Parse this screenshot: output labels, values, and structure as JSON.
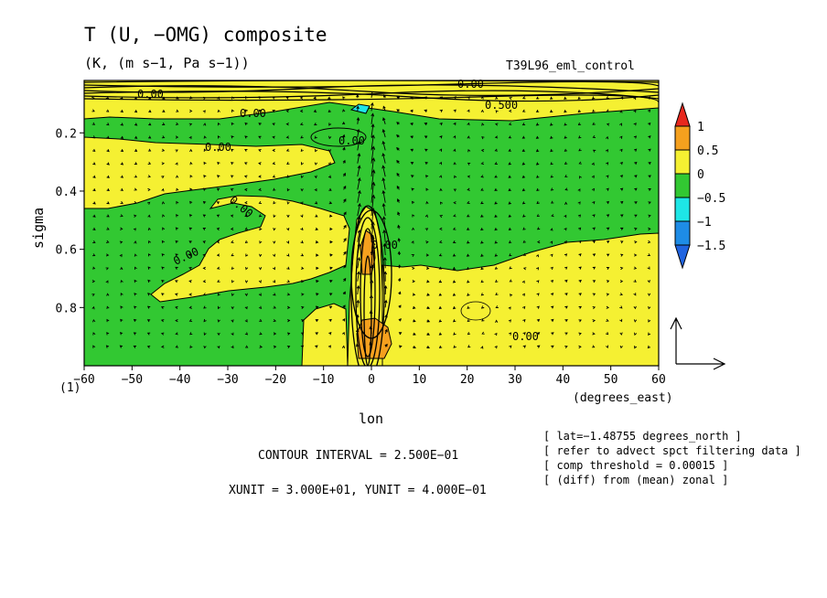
{
  "chart_data": {
    "type": "heatmap",
    "title": "T (U, −OMG) composite",
    "units": "(K, (m s−1, Pa s−1))",
    "experiment": "T39L96_eml_control",
    "xlabel": "lon",
    "xunit_label": "(degrees_east)",
    "ylabel": "sigma",
    "xlim": [
      -60,
      60
    ],
    "ylim": [
      1,
      0.02
    ],
    "x_ticks": [
      "−60",
      "−50",
      "−40",
      "−30",
      "−20",
      "−10",
      "0",
      "10",
      "20",
      "30",
      "40",
      "50",
      "60"
    ],
    "y_ticks": [
      "0.2",
      "0.4",
      "0.6",
      "0.8"
    ],
    "y_bottom_label": "(1)",
    "colorbar": {
      "labels": [
        "1",
        "0.5",
        "0",
        "−0.5",
        "−1",
        "−1.5"
      ],
      "colors": [
        "#e8281e",
        "#f5a01e",
        "#f5f032",
        "#32c832",
        "#1ee6e6",
        "#1e8ce6",
        "#2064e0"
      ]
    },
    "contour_labels": [
      "0.00",
      "0.00",
      "0.00",
      "0.00",
      "0.00",
      "0.00",
      "0.00",
      "0.500",
      "0.00",
      "0.00"
    ],
    "contour_interval": "CONTOUR INTERVAL = 2.500E−01",
    "vector_units": "XUNIT = 3.000E+01, YUNIT = 4.000E−01",
    "notes": [
      "[ lat=−1.48755 degrees_north ]",
      "[ refer to advect spct filtering data ]",
      "[ comp threshold = 0.00015 ]",
      "[ (diff) from (mean) zonal ]"
    ]
  }
}
